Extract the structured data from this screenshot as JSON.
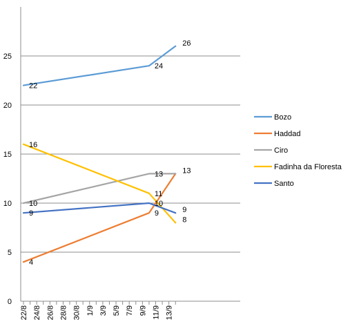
{
  "chart_data": {
    "type": "line",
    "title": "",
    "xlabel": "",
    "ylabel": "",
    "ylim": [
      0,
      30
    ],
    "yticks": [
      0,
      5,
      10,
      15,
      20,
      25
    ],
    "x_ticks": [
      "22/8",
      "24/8",
      "26/8",
      "28/8",
      "30/8",
      "1/9",
      "3/9",
      "5/9",
      "7/9",
      "9/9",
      "11/9",
      "13/9"
    ],
    "grid": true,
    "legend_position": "right",
    "series": [
      {
        "name": "Bozo",
        "color": "#5B9BD5",
        "points": [
          {
            "x": "22/8",
            "y": 22
          },
          {
            "x": "10/9",
            "y": 24
          },
          {
            "x": "14/9",
            "y": 26
          }
        ],
        "labels": [
          "22",
          "24",
          "26"
        ]
      },
      {
        "name": "Haddad",
        "color": "#ED7D31",
        "points": [
          {
            "x": "22/8",
            "y": 4
          },
          {
            "x": "10/9",
            "y": 9
          },
          {
            "x": "14/9",
            "y": 13
          }
        ],
        "labels": [
          "4",
          "9",
          "13"
        ]
      },
      {
        "name": "Ciro",
        "color": "#A5A5A5",
        "points": [
          {
            "x": "22/8",
            "y": 10
          },
          {
            "x": "10/9",
            "y": 13
          },
          {
            "x": "14/9",
            "y": 13
          }
        ],
        "labels": [
          "10",
          "13",
          ""
        ]
      },
      {
        "name": "Fadinha da Floresta",
        "color": "#FFC000",
        "points": [
          {
            "x": "22/8",
            "y": 16
          },
          {
            "x": "10/9",
            "y": 11
          },
          {
            "x": "14/9",
            "y": 8
          }
        ],
        "labels": [
          "16",
          "11",
          "8"
        ]
      },
      {
        "name": "Santo",
        "color": "#4472C4",
        "points": [
          {
            "x": "22/8",
            "y": 9
          },
          {
            "x": "10/9",
            "y": 10
          },
          {
            "x": "14/9",
            "y": 9
          }
        ],
        "labels": [
          "9",
          "10",
          "9"
        ]
      }
    ]
  }
}
